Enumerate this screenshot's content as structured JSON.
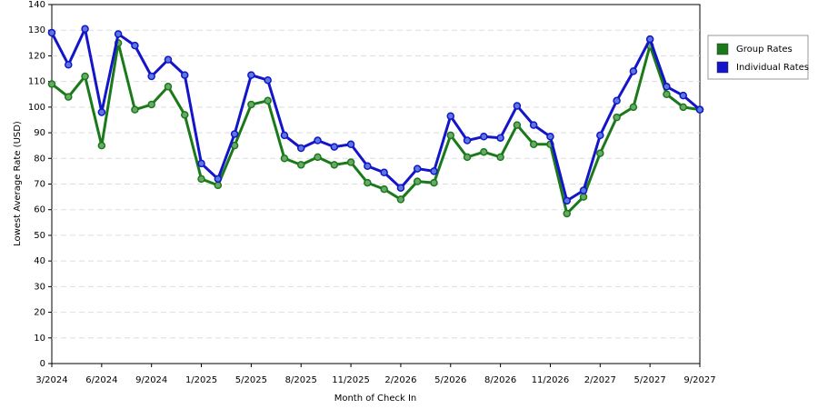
{
  "chart_data": {
    "type": "line",
    "x_label": "Month of Check In",
    "y_label": "Lowest Average Rate (USD)",
    "categories": [
      "3/2024",
      null,
      null,
      "6/2024",
      null,
      null,
      "9/2024",
      null,
      null,
      "1/2025",
      null,
      null,
      "5/2025",
      null,
      null,
      "8/2025",
      null,
      null,
      "11/2025",
      null,
      null,
      "2/2026",
      null,
      null,
      "5/2026",
      null,
      null,
      "8/2026",
      null,
      null,
      "11/2026",
      null,
      null,
      "2/2027",
      null,
      null,
      "5/2027",
      null,
      null,
      "9/2027"
    ],
    "series": [
      {
        "name": "Group Rates",
        "color": "#1a7a1a",
        "values": [
          109,
          104,
          112,
          85,
          125,
          99,
          101,
          108,
          97,
          72,
          69.5,
          85,
          101,
          102.5,
          80,
          77.5,
          80.5,
          77.5,
          78.5,
          70.5,
          68,
          64,
          71,
          70.5,
          89,
          80.5,
          82.5,
          80.5,
          93,
          85.5,
          85.5,
          58.5,
          65,
          82,
          96,
          100,
          124,
          105,
          100,
          99
        ]
      },
      {
        "name": "Individual Rates",
        "color": "#1414c8",
        "values": [
          129,
          116.5,
          130.5,
          98,
          128.5,
          124,
          112,
          118.5,
          112.5,
          78,
          72,
          89.5,
          112.5,
          110.5,
          89,
          84,
          87,
          84.5,
          85.5,
          77,
          74.5,
          68.5,
          76,
          75,
          96.5,
          87,
          88.5,
          88,
          100.5,
          93,
          88.5,
          63.5,
          67.5,
          89,
          102.5,
          114,
          126.5,
          108,
          104.5,
          99
        ]
      }
    ],
    "ylim": [
      0,
      140
    ],
    "yticks": [
      0,
      10,
      20,
      30,
      40,
      50,
      60,
      70,
      80,
      90,
      100,
      110,
      120,
      130,
      140
    ],
    "grid": true,
    "legend": "right"
  }
}
